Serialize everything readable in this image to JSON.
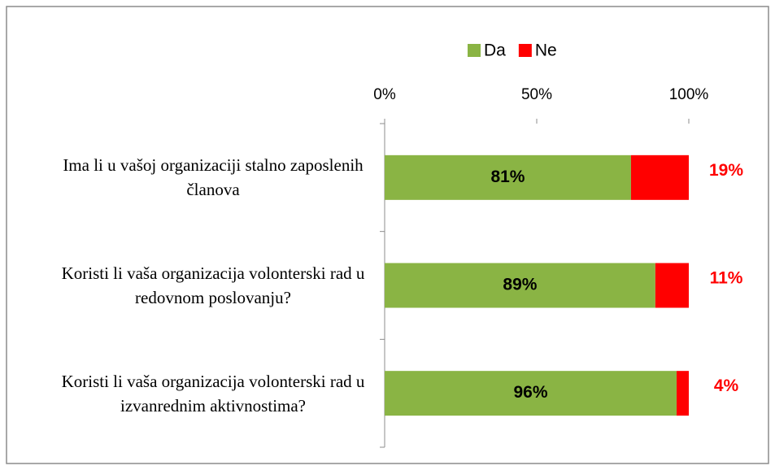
{
  "chart_data": {
    "type": "stacked_barh",
    "categories": [
      "Ima li u vašoj organizaciji stalno zaposlenih članova",
      "Koristi li vaša organizacija volonterski rad u redovnom poslovanju?",
      "Koristi li vaša organizacija volonterski rad u izvanrednim aktivnostima?"
    ],
    "series": [
      {
        "name": "Da",
        "color": "#8ab444",
        "values": [
          81,
          89,
          96
        ],
        "value_labels": [
          "81%",
          "89%",
          "96%"
        ]
      },
      {
        "name": "Ne",
        "color": "#ff0000",
        "values": [
          19,
          11,
          4
        ],
        "value_labels": [
          "19%",
          "11%",
          "4%"
        ]
      }
    ],
    "xlim": [
      0,
      100
    ],
    "xticks": [
      {
        "value": 0,
        "label": "0%"
      },
      {
        "value": 50,
        "label": "50%"
      },
      {
        "value": 100,
        "label": "100%"
      }
    ],
    "legend": "top"
  }
}
